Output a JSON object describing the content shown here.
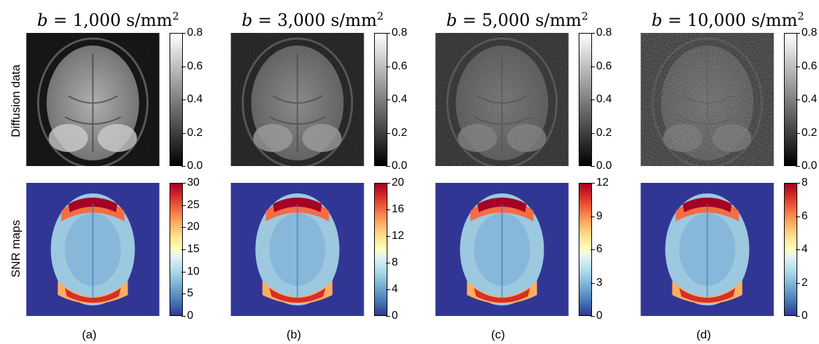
{
  "columns": [
    {
      "b_value": "1,000",
      "unit": "s/mm",
      "exp": "2",
      "caption": "(a)",
      "diff_ticks": [
        "0.8",
        "0.6",
        "0.4",
        "0.2",
        "0.0"
      ],
      "snr_ticks": [
        "30",
        "25",
        "20",
        "15",
        "10",
        "5",
        "0"
      ]
    },
    {
      "b_value": "3,000",
      "unit": "s/mm",
      "exp": "2",
      "caption": "(b)",
      "diff_ticks": [
        "0.8",
        "0.6",
        "0.4",
        "0.2",
        "0.0"
      ],
      "snr_ticks": [
        "20",
        "16",
        "12",
        "8",
        "4",
        "0"
      ]
    },
    {
      "b_value": "5,000",
      "unit": "s/mm",
      "exp": "2",
      "caption": "(c)",
      "diff_ticks": [
        "0.8",
        "0.6",
        "0.4",
        "0.2",
        "0.0"
      ],
      "snr_ticks": [
        "12",
        "9",
        "6",
        "3",
        "0"
      ]
    },
    {
      "b_value": "10,000",
      "unit": "s/mm",
      "exp": "2",
      "caption": "(d)",
      "diff_ticks": [
        "0.8",
        "0.6",
        "0.4",
        "0.2",
        "0.0"
      ],
      "snr_ticks": [
        "8",
        "6",
        "4",
        "2",
        "0"
      ]
    }
  ],
  "rows": {
    "top_label": "Diffusion data",
    "bottom_label": "SNR maps"
  },
  "colors": {
    "snr_background": "#313695",
    "colormap_top": "#a50026",
    "colormap_bottom": "#313695"
  }
}
